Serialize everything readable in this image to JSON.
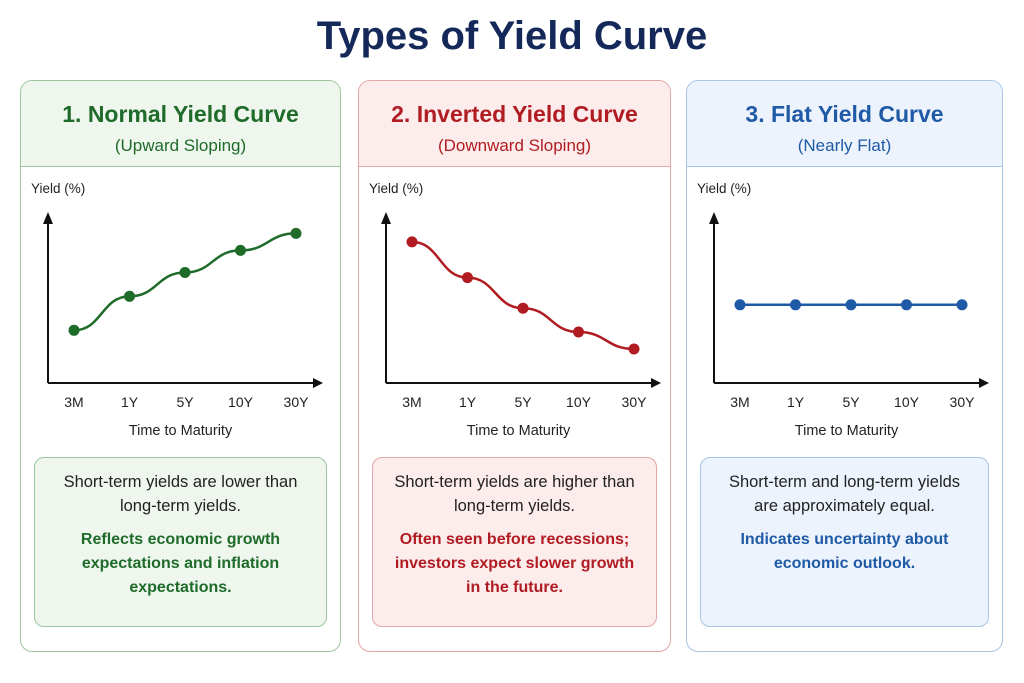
{
  "title": "Types of Yield Curve",
  "chart_data": [
    {
      "type": "line",
      "title": "1. Normal Yield Curve",
      "subtitle": "(Upward Sloping)",
      "ylabel": "Yield (%)",
      "xlabel": "Time to Maturity",
      "categories": [
        "3M",
        "1Y",
        "5Y",
        "10Y",
        "30Y"
      ],
      "values": [
        3.1,
        5.1,
        6.5,
        7.8,
        8.8
      ],
      "ylim": [
        0,
        10
      ],
      "color": "#1e6b2a",
      "bg": "#eef6ee",
      "border": "#9cc79f",
      "note": "Short-term yields are lower than long-term yields.",
      "highlight": "Reflects economic growth expectations and inflation expectations."
    },
    {
      "type": "line",
      "title": "2. Inverted Yield Curve",
      "subtitle": "(Downward Sloping)",
      "ylabel": "Yield (%)",
      "xlabel": "Time to Maturity",
      "categories": [
        "3M",
        "1Y",
        "5Y",
        "10Y",
        "30Y"
      ],
      "values": [
        8.3,
        6.2,
        4.4,
        3.0,
        2.0
      ],
      "ylim": [
        0,
        10
      ],
      "color": "#b01c22",
      "bg": "#fcecec",
      "border": "#e3a5a5",
      "note": "Short-term yields are higher than long-term yields.",
      "highlight": "Often seen before recessions; investors expect slower growth in the future."
    },
    {
      "type": "line",
      "title": "3. Flat Yield Curve",
      "subtitle": "(Nearly Flat)",
      "ylabel": "Yield (%)",
      "xlabel": "Time to Maturity",
      "categories": [
        "3M",
        "1Y",
        "5Y",
        "10Y",
        "30Y"
      ],
      "values": [
        4.6,
        4.6,
        4.6,
        4.6,
        4.6
      ],
      "ylim": [
        0,
        10
      ],
      "color": "#1f5aa6",
      "bg": "#ecf3fc",
      "border": "#a9c4e6",
      "note": "Short-term and long-term yields are approximately equal.",
      "highlight": "Indicates uncertainty about economic outlook."
    }
  ]
}
